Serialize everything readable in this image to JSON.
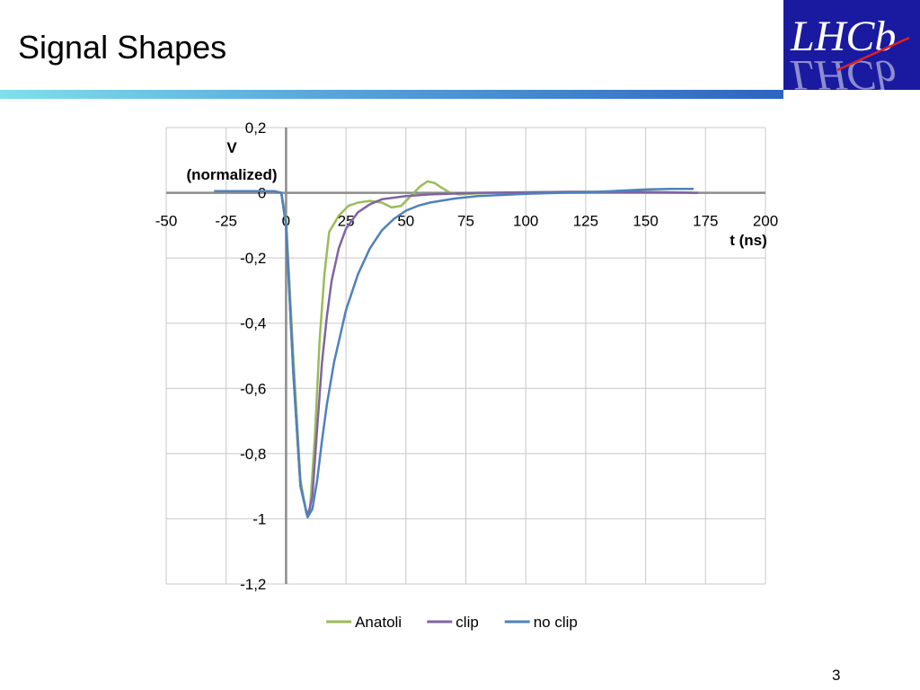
{
  "slide": {
    "title": "Signal Shapes",
    "page_number": "3",
    "logo_text": "LHCb"
  },
  "colors": {
    "accent_gradient_start": "#7fe0ea",
    "accent_gradient_end": "#2e64c0",
    "logo_background": "#1a1aa0",
    "grid": "#c8c8c8",
    "axis": "#8c8c8c"
  },
  "chart_data": {
    "type": "line",
    "title": "",
    "xlabel": "t (ns)",
    "ylabel_lines": [
      "V",
      "(normalized)"
    ],
    "xlim": [
      -50,
      200
    ],
    "ylim": [
      -1.2,
      0.2
    ],
    "x_ticks": [
      "-50",
      "-25",
      "0",
      "25",
      "50",
      "75",
      "100",
      "125",
      "150",
      "175",
      "200"
    ],
    "y_ticks": [
      "0,2",
      "0",
      "-0,2",
      "-0,4",
      "-0,6",
      "-0,8",
      "-1",
      "-1,2"
    ],
    "grid": true,
    "legend_position": "bottom",
    "series": [
      {
        "name": "Anatoli",
        "color": "#9bbb59",
        "points": [
          [
            -30,
            0.005
          ],
          [
            -5,
            0.005
          ],
          [
            -2,
            0.0
          ],
          [
            0,
            -0.08
          ],
          [
            3,
            -0.5
          ],
          [
            6,
            -0.88
          ],
          [
            8.5,
            -0.985
          ],
          [
            10,
            -0.97
          ],
          [
            12,
            -0.75
          ],
          [
            14,
            -0.45
          ],
          [
            16,
            -0.25
          ],
          [
            18,
            -0.12
          ],
          [
            22,
            -0.07
          ],
          [
            26,
            -0.04
          ],
          [
            30,
            -0.03
          ],
          [
            35,
            -0.025
          ],
          [
            40,
            -0.03
          ],
          [
            44,
            -0.045
          ],
          [
            48,
            -0.04
          ],
          [
            52,
            -0.01
          ],
          [
            56,
            0.02
          ],
          [
            59,
            0.035
          ],
          [
            62,
            0.03
          ],
          [
            65,
            0.015
          ],
          [
            68,
            0.002
          ],
          [
            72,
            -0.005
          ],
          [
            85,
            0.0
          ],
          [
            120,
            0.003
          ],
          [
            150,
            0.003
          ],
          [
            170,
            0.0
          ]
        ]
      },
      {
        "name": "clip",
        "color": "#8064a2",
        "points": [
          [
            -30,
            0.005
          ],
          [
            -5,
            0.005
          ],
          [
            -2,
            0.0
          ],
          [
            0,
            -0.1
          ],
          [
            3,
            -0.55
          ],
          [
            6,
            -0.9
          ],
          [
            9,
            -0.995
          ],
          [
            11,
            -0.93
          ],
          [
            13,
            -0.72
          ],
          [
            15,
            -0.52
          ],
          [
            17,
            -0.38
          ],
          [
            19,
            -0.27
          ],
          [
            22,
            -0.17
          ],
          [
            25,
            -0.11
          ],
          [
            30,
            -0.06
          ],
          [
            35,
            -0.035
          ],
          [
            40,
            -0.02
          ],
          [
            50,
            -0.01
          ],
          [
            60,
            -0.005
          ],
          [
            80,
            0.0
          ],
          [
            120,
            0.003
          ],
          [
            150,
            0.002
          ],
          [
            172,
            0.0
          ]
        ]
      },
      {
        "name": "no clip",
        "color": "#4f81bd",
        "points": [
          [
            -30,
            0.005
          ],
          [
            -5,
            0.005
          ],
          [
            -2,
            0.0
          ],
          [
            0,
            -0.1
          ],
          [
            3,
            -0.55
          ],
          [
            6,
            -0.9
          ],
          [
            9,
            -0.995
          ],
          [
            11,
            -0.97
          ],
          [
            13,
            -0.88
          ],
          [
            15,
            -0.76
          ],
          [
            17,
            -0.65
          ],
          [
            20,
            -0.52
          ],
          [
            25,
            -0.36
          ],
          [
            30,
            -0.25
          ],
          [
            35,
            -0.17
          ],
          [
            40,
            -0.115
          ],
          [
            45,
            -0.08
          ],
          [
            50,
            -0.055
          ],
          [
            55,
            -0.04
          ],
          [
            60,
            -0.03
          ],
          [
            70,
            -0.018
          ],
          [
            80,
            -0.01
          ],
          [
            100,
            -0.003
          ],
          [
            130,
            0.003
          ],
          [
            150,
            0.01
          ],
          [
            160,
            0.012
          ],
          [
            170,
            0.012
          ]
        ]
      }
    ]
  }
}
